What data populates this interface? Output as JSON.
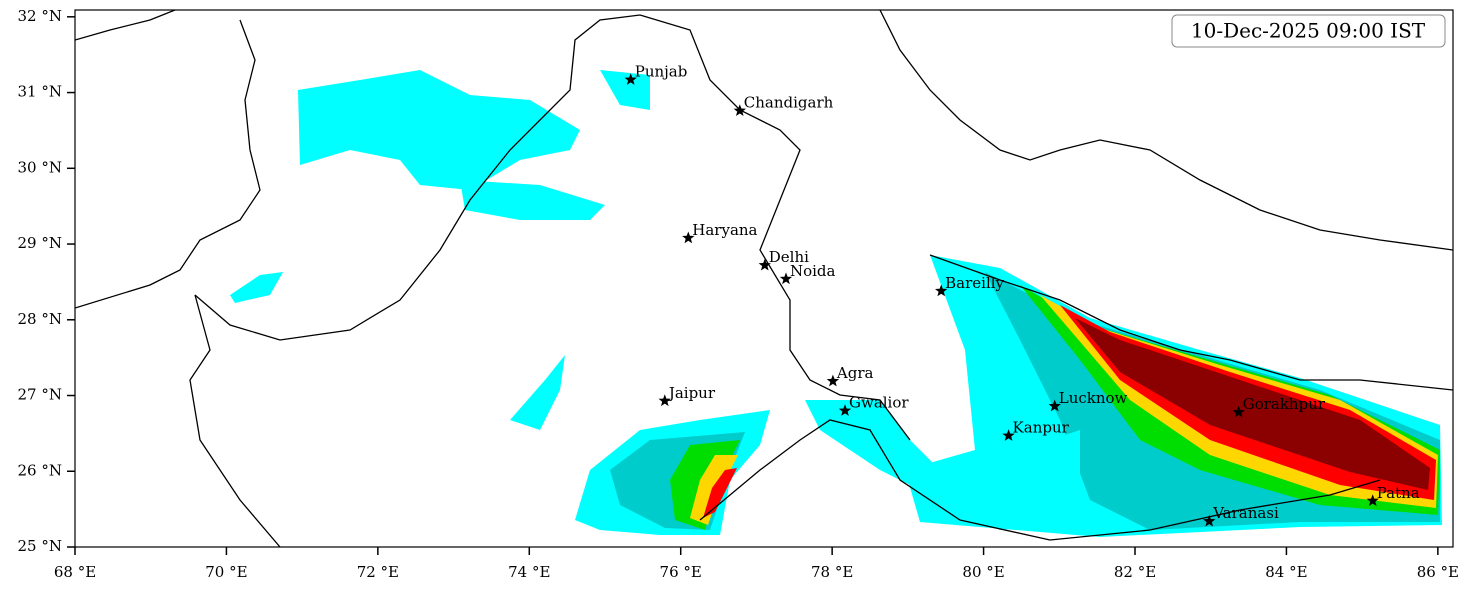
{
  "map": {
    "title": "10-Dec-2025 09:00 IST",
    "xlim": [
      68,
      86.2
    ],
    "ylim": [
      25,
      32.09
    ],
    "xticks": [
      {
        "value": 68,
        "label": "68 °E"
      },
      {
        "value": 70,
        "label": "70 °E"
      },
      {
        "value": 72,
        "label": "72 °E"
      },
      {
        "value": 74,
        "label": "74 °E"
      },
      {
        "value": 76,
        "label": "76 °E"
      },
      {
        "value": 78,
        "label": "78 °E"
      },
      {
        "value": 80,
        "label": "80 °E"
      },
      {
        "value": 82,
        "label": "82 °E"
      },
      {
        "value": 84,
        "label": "84 °E"
      },
      {
        "value": 86,
        "label": "86 °E"
      }
    ],
    "yticks": [
      {
        "value": 25,
        "label": "25 °N"
      },
      {
        "value": 26,
        "label": "26 °N"
      },
      {
        "value": 27,
        "label": "27 °N"
      },
      {
        "value": 28,
        "label": "28 °N"
      },
      {
        "value": 29,
        "label": "29 °N"
      },
      {
        "value": 30,
        "label": "30 °N"
      },
      {
        "value": 31,
        "label": "31 °N"
      },
      {
        "value": 32,
        "label": "32 °N"
      }
    ],
    "cities": [
      {
        "name": "Punjab",
        "lon": 75.34,
        "lat": 31.17
      },
      {
        "name": "Chandigarh",
        "lon": 76.78,
        "lat": 30.76
      },
      {
        "name": "Haryana",
        "lon": 76.1,
        "lat": 29.08
      },
      {
        "name": "Delhi",
        "lon": 77.11,
        "lat": 28.72
      },
      {
        "name": "Noida",
        "lon": 77.39,
        "lat": 28.54
      },
      {
        "name": "Bareilly",
        "lon": 79.44,
        "lat": 28.38
      },
      {
        "name": "Agra",
        "lon": 78.01,
        "lat": 27.19
      },
      {
        "name": "Jaipur",
        "lon": 75.79,
        "lat": 26.93
      },
      {
        "name": "Gwalior",
        "lon": 78.17,
        "lat": 26.8
      },
      {
        "name": "Lucknow",
        "lon": 80.94,
        "lat": 26.86
      },
      {
        "name": "Kanpur",
        "lon": 80.33,
        "lat": 26.47
      },
      {
        "name": "Gorakhpur",
        "lon": 83.37,
        "lat": 26.78
      },
      {
        "name": "Varanasi",
        "lon": 82.98,
        "lat": 25.34
      },
      {
        "name": "Patna",
        "lon": 85.14,
        "lat": 25.61
      }
    ]
  }
}
